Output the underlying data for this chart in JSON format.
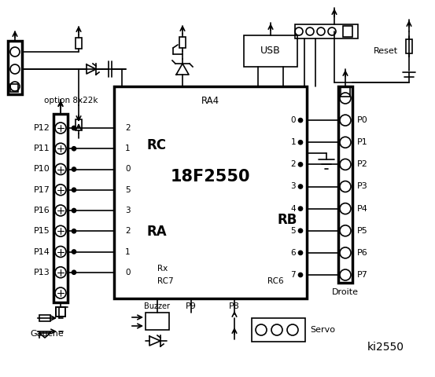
{
  "title": "ki2550",
  "bg_color": "#ffffff",
  "line_color": "#000000",
  "chip_label": "18F2550",
  "chip_sublabel": "RA4",
  "rc_label": "RC",
  "ra_label": "RA",
  "rb_label": "RB",
  "left_pins": [
    "P12",
    "P11",
    "P10",
    "P17",
    "P16",
    "P15",
    "P14",
    "P13"
  ],
  "rc_pins": [
    "2",
    "1",
    "0",
    "5",
    "3",
    "2",
    "1",
    "0"
  ],
  "rb_pins": [
    "0",
    "1",
    "2",
    "3",
    "4",
    "5",
    "6",
    "7"
  ],
  "right_pins": [
    "P0",
    "P1",
    "P2",
    "P3",
    "P4",
    "P5",
    "P6",
    "P7"
  ],
  "option_label": "option 8x22k",
  "gauche_label": "Gauche",
  "droite_label": "Droite",
  "reset_label": "Reset",
  "buzzer_label": "Buzzer",
  "servo_label": "Servo",
  "usb_label": "USB",
  "rx_label": "Rx",
  "rc7_label": "RC7",
  "rc6_label": "RC6",
  "p9_label": "P9",
  "p8_label": "P8"
}
